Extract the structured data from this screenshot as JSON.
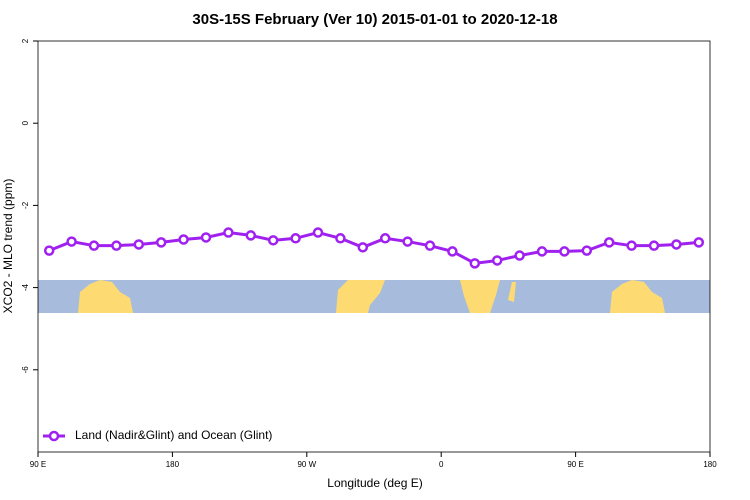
{
  "chart_data": {
    "type": "line",
    "title": "30S-15S February (Ver 10)   2015-01-01 to 2020-12-18",
    "x_label": "Longitude (deg E)",
    "y_label": "XCO2 - MLO trend (ppm)",
    "x": [
      97.5,
      112.5,
      127.5,
      142.5,
      157.5,
      172.5,
      187.5,
      202.5,
      217.5,
      232.5,
      247.5,
      262.5,
      277.5,
      292.5,
      307.5,
      322.5,
      337.5,
      352.5,
      367.5,
      382.5,
      397.5,
      412.5,
      427.5,
      442.5,
      457.5,
      472.5,
      487.5,
      502.5,
      517.5,
      532.5
    ],
    "series": [
      {
        "name": "Land (Nadir&Glint) and Ocean (Glint)",
        "color": "#a020f0",
        "values": [
          -3.1,
          -2.88,
          -2.98,
          -2.98,
          -2.95,
          -2.9,
          -2.83,
          -2.78,
          -2.66,
          -2.73,
          -2.85,
          -2.8,
          -2.66,
          -2.8,
          -3.02,
          -2.8,
          -2.88,
          -2.98,
          -3.12,
          -3.41,
          -3.34,
          -3.22,
          -3.12,
          -3.12,
          -3.1,
          -2.9,
          -2.98,
          -2.98,
          -2.95,
          -2.9
        ]
      }
    ],
    "xlim": [
      90,
      540
    ],
    "xticks": [
      {
        "value": 90,
        "label": "90 E"
      },
      180,
      {
        "value": 270,
        "label": "90 W"
      },
      {
        "value": 360,
        "label": "0"
      },
      {
        "value": 450,
        "label": "90 E"
      },
      {
        "value": 540,
        "label": "180"
      }
    ],
    "ylim": [
      -8,
      2
    ],
    "yticks": [
      2,
      0,
      -2,
      -4,
      -6
    ],
    "legend": "bottom-left"
  }
}
